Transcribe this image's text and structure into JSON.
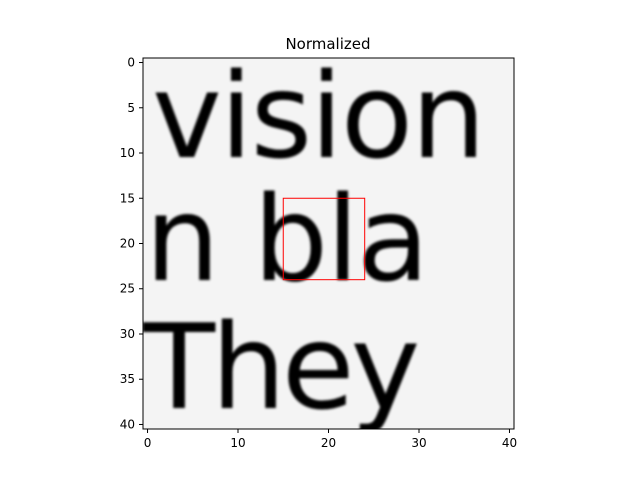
{
  "chart_data": {
    "type": "heatmap",
    "title": "Normalized",
    "xlabel": "",
    "ylabel": "",
    "colormap": "gray",
    "xlim": [
      -0.5,
      40.5
    ],
    "ylim": [
      40.5,
      -0.5
    ],
    "x_ticks": [
      0,
      10,
      20,
      30,
      40
    ],
    "y_ticks": [
      0,
      5,
      10,
      15,
      20,
      25,
      30,
      35,
      40
    ],
    "image_description_text": [
      "vision",
      "n bla",
      "They"
    ],
    "highlight_box": {
      "x0": 15,
      "y0": 15,
      "x1": 24,
      "y1": 24,
      "color": "#ff0000"
    },
    "grid": false
  }
}
